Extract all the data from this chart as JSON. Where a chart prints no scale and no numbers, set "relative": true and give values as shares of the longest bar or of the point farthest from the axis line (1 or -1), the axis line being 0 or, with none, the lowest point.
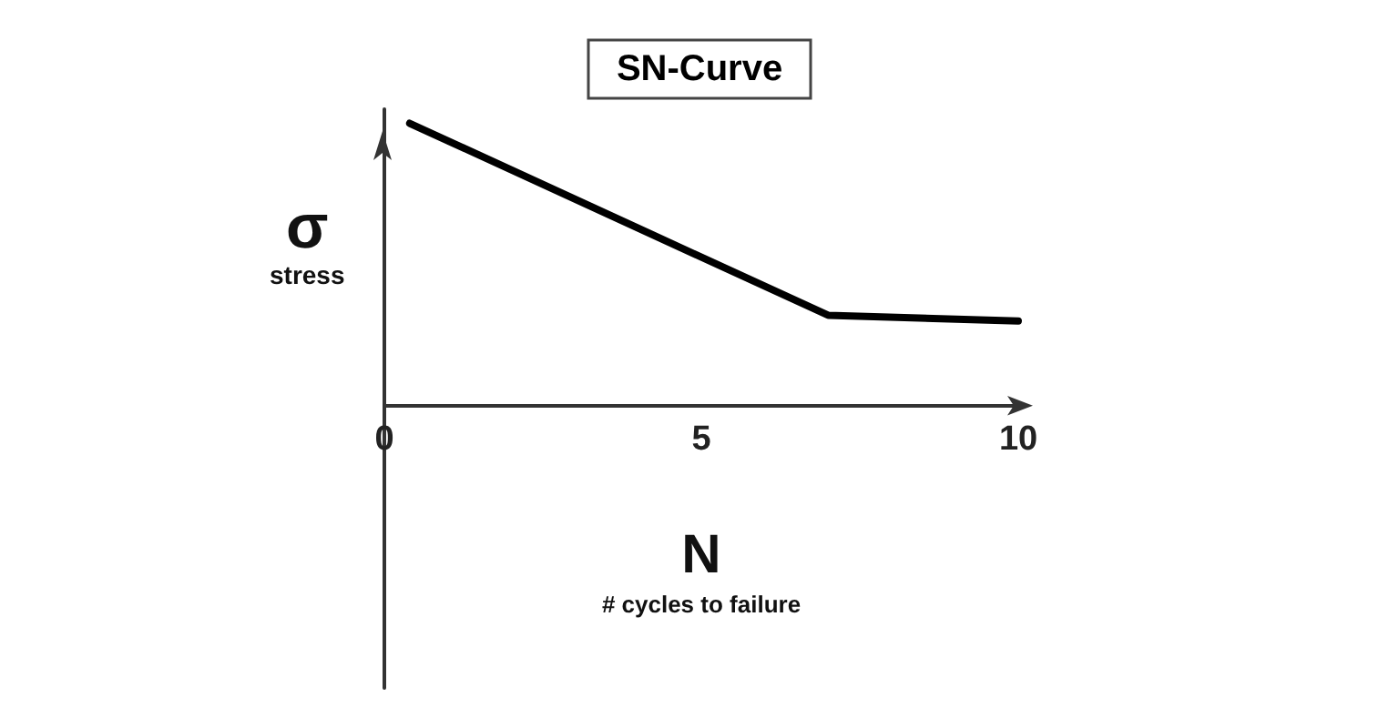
{
  "chart_data": {
    "type": "line",
    "title": "SN-Curve",
    "xlabel": "N\n# cycles to failure",
    "ylabel": "σ\nstress",
    "relative": true,
    "x": [
      0.4,
      7,
      10
    ],
    "series": [
      {
        "color": "#000000",
        "values": [
          1,
          0.32,
          0.3
        ]
      }
    ],
    "xlim": [
      0,
      10
    ],
    "xticks": [
      0,
      5,
      10
    ],
    "marker": "none",
    "line_style": "solid",
    "grid": false
  }
}
